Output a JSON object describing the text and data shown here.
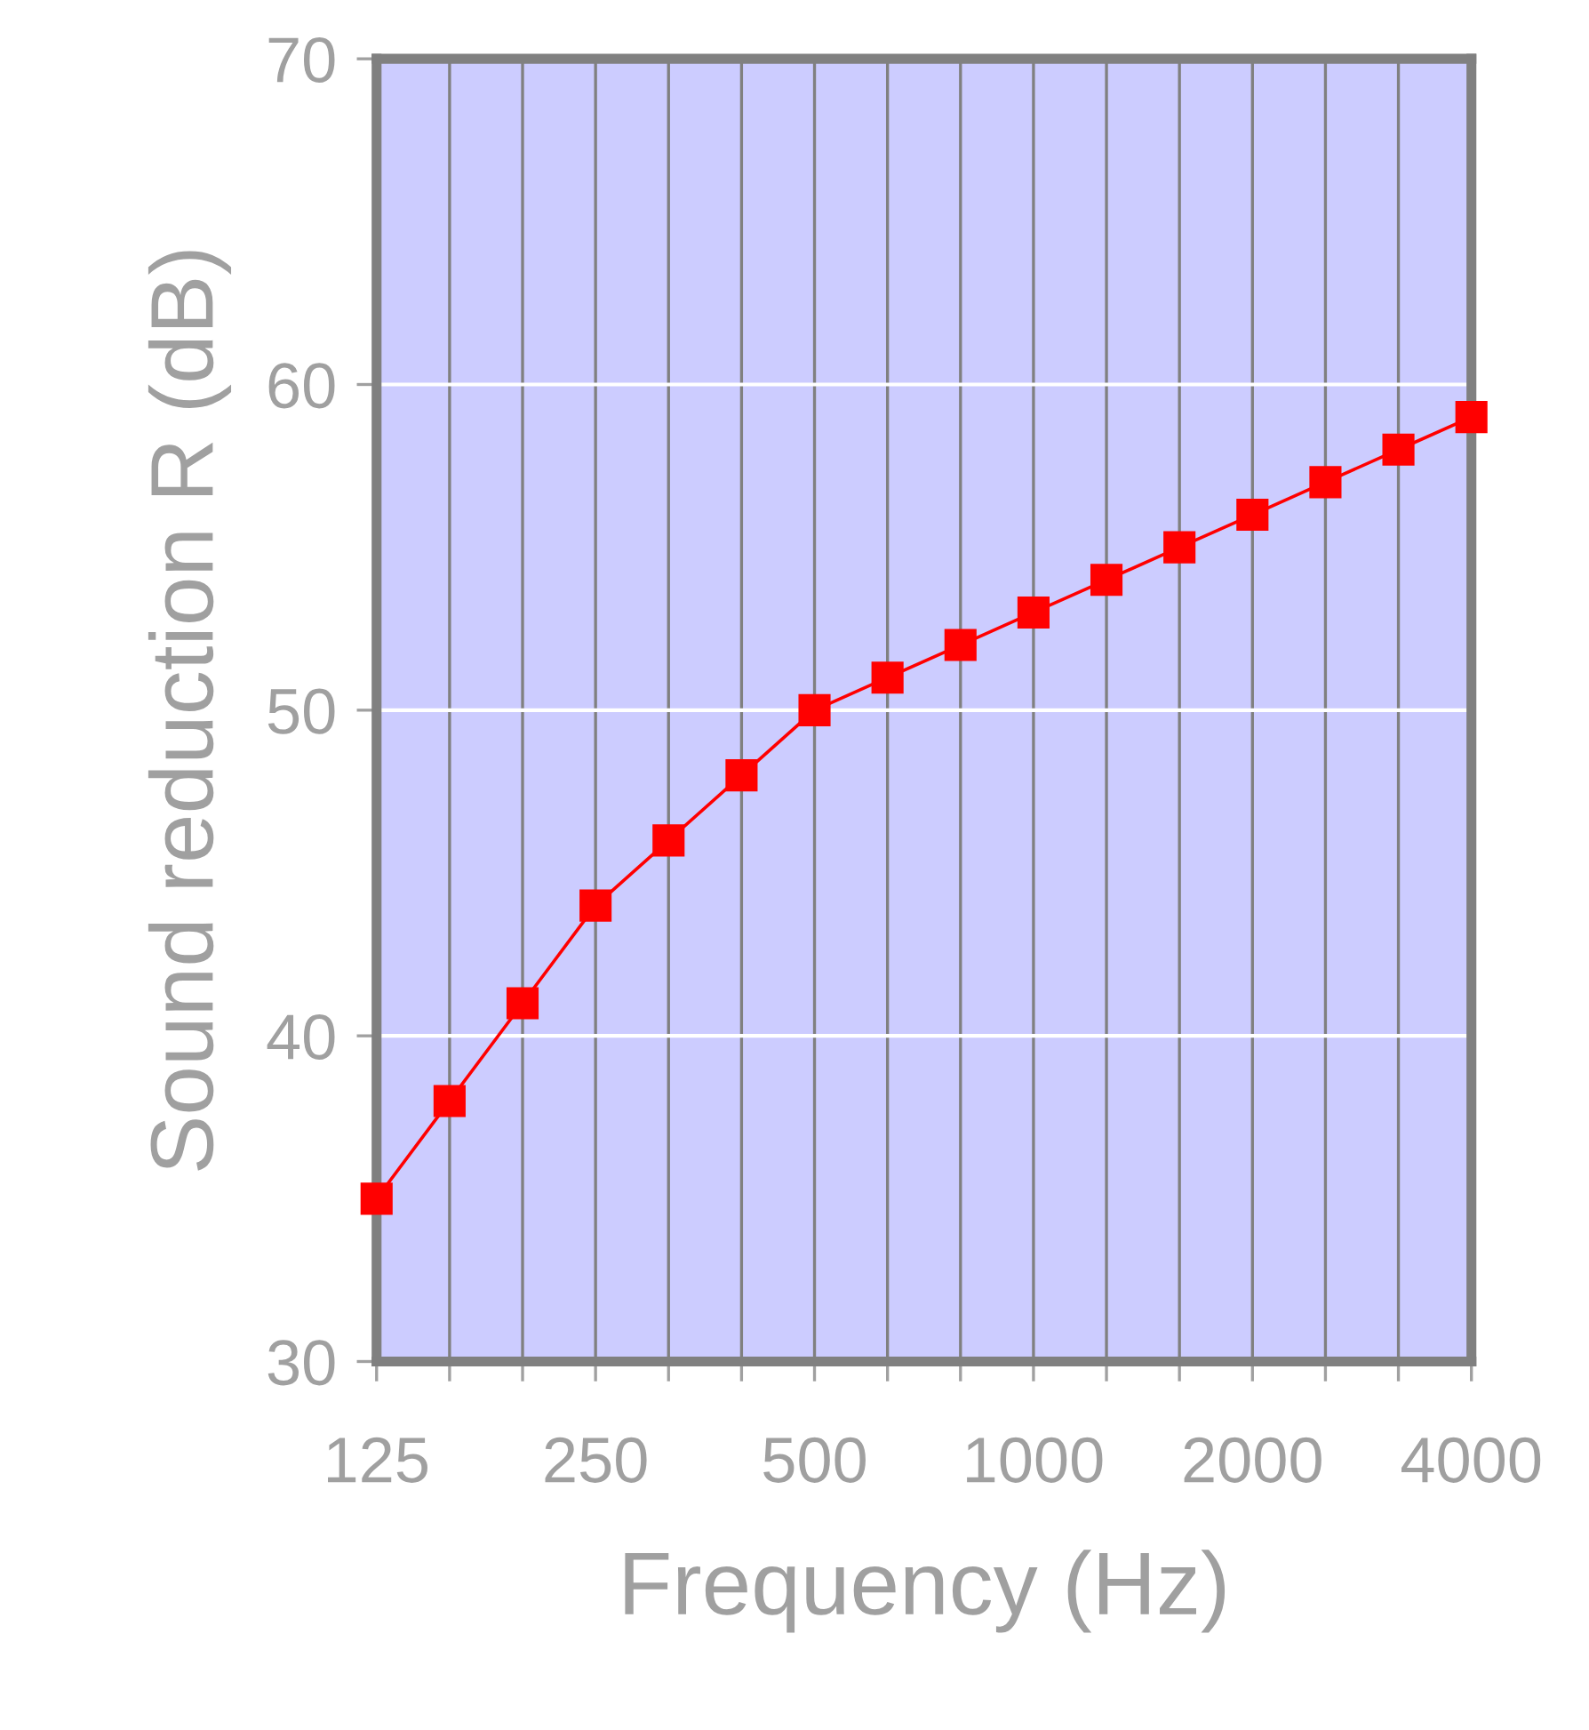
{
  "chart_data": {
    "type": "line",
    "xlabel": "Frequency (Hz)",
    "ylabel": "Sound reduction R (dB)",
    "categories": [
      "125",
      null,
      null,
      "250",
      null,
      null,
      "500",
      null,
      null,
      "1000",
      null,
      null,
      "2000",
      null,
      null,
      "4000"
    ],
    "series": [
      {
        "color": "#ff0000",
        "values": [
          35,
          38,
          41,
          44,
          46,
          48,
          50,
          51,
          52,
          53,
          54,
          55,
          56,
          57,
          58,
          59
        ]
      }
    ],
    "ylim": [
      30,
      70
    ],
    "yticks": [
      30,
      40,
      50,
      60,
      70
    ],
    "grid": true,
    "marker": "square",
    "line_style": "solid"
  }
}
